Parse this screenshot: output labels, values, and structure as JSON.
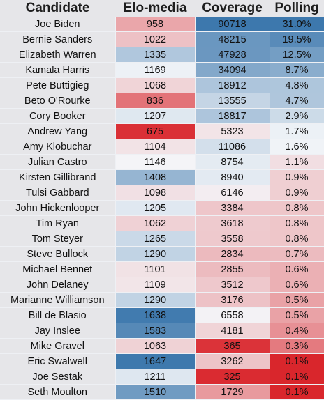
{
  "chart_data": {
    "type": "table",
    "columns": [
      "Candidate",
      "Elo-media",
      "Coverage",
      "Polling"
    ],
    "rows": [
      {
        "candidate": "Joe Biden",
        "elo_media": "958",
        "coverage": "90718",
        "polling": "31.0%"
      },
      {
        "candidate": "Bernie Sanders",
        "elo_media": "1022",
        "coverage": "48215",
        "polling": "19.5%"
      },
      {
        "candidate": "Elizabeth Warren",
        "elo_media": "1335",
        "coverage": "47928",
        "polling": "12.5%"
      },
      {
        "candidate": "Kamala Harris",
        "elo_media": "1169",
        "coverage": "34094",
        "polling": "8.7%"
      },
      {
        "candidate": "Pete Buttigieg",
        "elo_media": "1068",
        "coverage": "18912",
        "polling": "4.8%"
      },
      {
        "candidate": "Beto O'Rourke",
        "elo_media": "836",
        "coverage": "13555",
        "polling": "4.7%"
      },
      {
        "candidate": "Cory Booker",
        "elo_media": "1207",
        "coverage": "18817",
        "polling": "2.9%"
      },
      {
        "candidate": "Andrew Yang",
        "elo_media": "675",
        "coverage": "5323",
        "polling": "1.7%"
      },
      {
        "candidate": "Amy Klobuchar",
        "elo_media": "1104",
        "coverage": "11086",
        "polling": "1.6%"
      },
      {
        "candidate": "Julian Castro",
        "elo_media": "1146",
        "coverage": "8754",
        "polling": "1.1%"
      },
      {
        "candidate": "Kirsten Gillibrand",
        "elo_media": "1408",
        "coverage": "8940",
        "polling": "0.9%"
      },
      {
        "candidate": "Tulsi Gabbard",
        "elo_media": "1098",
        "coverage": "6146",
        "polling": "0.9%"
      },
      {
        "candidate": "John Hickenlooper",
        "elo_media": "1205",
        "coverage": "3384",
        "polling": "0.8%"
      },
      {
        "candidate": "Tim Ryan",
        "elo_media": "1062",
        "coverage": "3618",
        "polling": "0.8%"
      },
      {
        "candidate": "Tom Steyer",
        "elo_media": "1265",
        "coverage": "3558",
        "polling": "0.8%"
      },
      {
        "candidate": "Steve Bullock",
        "elo_media": "1290",
        "coverage": "2834",
        "polling": "0.7%"
      },
      {
        "candidate": "Michael Bennet",
        "elo_media": "1101",
        "coverage": "2855",
        "polling": "0.6%"
      },
      {
        "candidate": "John Delaney",
        "elo_media": "1109",
        "coverage": "3512",
        "polling": "0.6%"
      },
      {
        "candidate": "Marianne Williamson",
        "elo_media": "1290",
        "coverage": "3176",
        "polling": "0.5%"
      },
      {
        "candidate": "Bill de Blasio",
        "elo_media": "1638",
        "coverage": "6558",
        "polling": "0.5%"
      },
      {
        "candidate": "Jay Inslee",
        "elo_media": "1583",
        "coverage": "4181",
        "polling": "0.4%"
      },
      {
        "candidate": "Mike Gravel",
        "elo_media": "1063",
        "coverage": "365",
        "polling": "0.3%"
      },
      {
        "candidate": "Eric Swalwell",
        "elo_media": "1647",
        "coverage": "3262",
        "polling": "0.1%"
      },
      {
        "candidate": "Joe Sestak",
        "elo_media": "1211",
        "coverage": "325",
        "polling": "0.1%"
      },
      {
        "candidate": "Seth Moulton",
        "elo_media": "1510",
        "coverage": "1729",
        "polling": "0.1%"
      }
    ],
    "color_scale": {
      "low": "#d9262c",
      "mid": "#f4f6f9",
      "high": "#3d78ad"
    }
  }
}
